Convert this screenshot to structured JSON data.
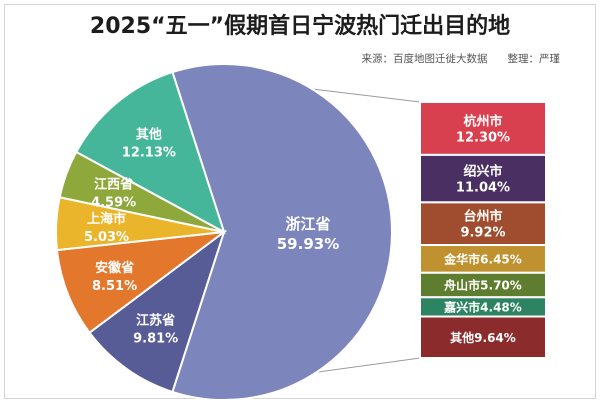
{
  "header": {
    "title": "2025“五一”假期首日宁波热门迁出目的地",
    "source": "来源：百度地图迁徙大数据",
    "editor": "整理：严瑾"
  },
  "chart_data": [
    {
      "type": "pie",
      "title": "2025“五一”假期首日宁波热门迁出目的地",
      "slices": [
        {
          "name": "浙江省",
          "value": 59.93,
          "label": "59.93%",
          "color": "#7c86bd"
        },
        {
          "name": "江苏省",
          "value": 9.81,
          "label": "9.81%",
          "color": "#575c97"
        },
        {
          "name": "安徽省",
          "value": 8.51,
          "label": "8.51%",
          "color": "#e3782c"
        },
        {
          "name": "上海市",
          "value": 5.03,
          "label": "5.03%",
          "color": "#eab52b"
        },
        {
          "name": "江西省",
          "value": 4.59,
          "label": "4.59%",
          "color": "#8ea83b"
        },
        {
          "name": "其他",
          "value": 12.13,
          "label": "12.13%",
          "color": "#45b69a"
        }
      ]
    },
    {
      "type": "bar",
      "orientation": "stacked-column",
      "parent": "浙江省",
      "segments": [
        {
          "name": "杭州市",
          "value": 12.3,
          "label": "12.30%",
          "color": "#d9404f",
          "inline": false
        },
        {
          "name": "绍兴市",
          "value": 11.04,
          "label": "11.04%",
          "color": "#4a2f63",
          "inline": false
        },
        {
          "name": "台州市",
          "value": 9.92,
          "label": "9.92%",
          "color": "#9f4d2e",
          "inline": false
        },
        {
          "name": "金华市",
          "value": 6.45,
          "label": "6.45%",
          "color": "#c0912f",
          "inline": true
        },
        {
          "name": "舟山市",
          "value": 5.7,
          "label": "5.70%",
          "color": "#5f7d2e",
          "inline": true
        },
        {
          "name": "嘉兴市",
          "value": 4.48,
          "label": "4.48%",
          "color": "#2d8462",
          "inline": true
        },
        {
          "name": "其他",
          "value": 9.64,
          "label": "9.64%",
          "color": "#8c2b2b",
          "inline": true
        }
      ]
    }
  ]
}
